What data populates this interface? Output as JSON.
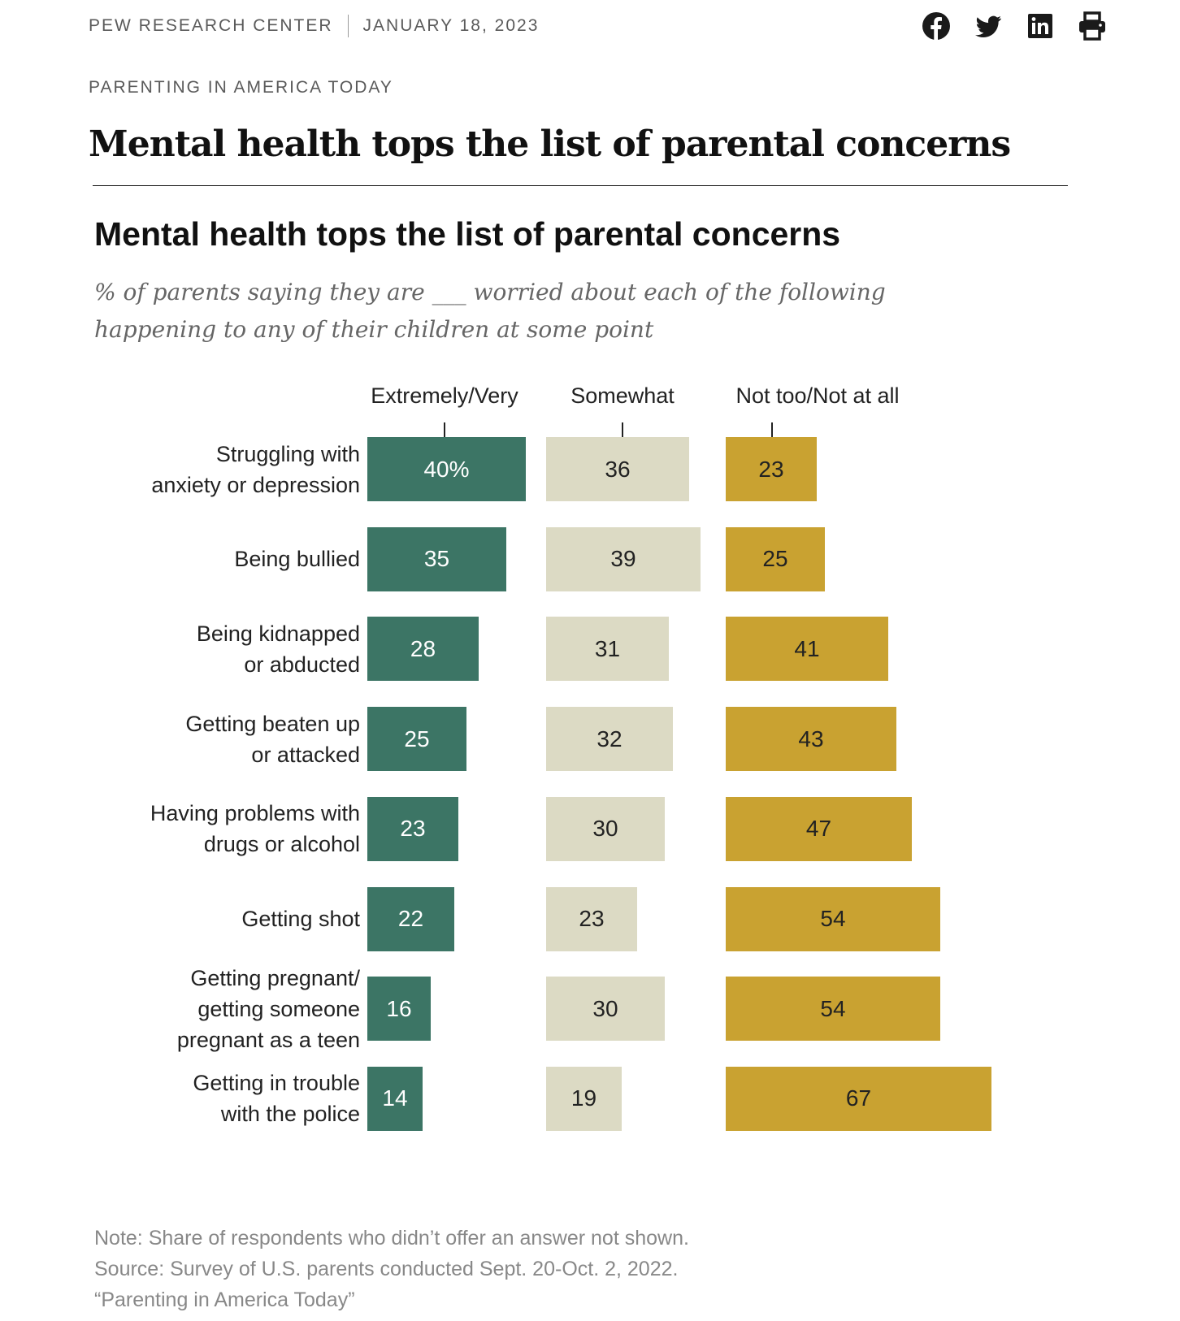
{
  "header": {
    "publisher": "PEW RESEARCH CENTER",
    "date": "JANUARY 18, 2023",
    "social_icons": [
      "facebook-icon",
      "twitter-icon",
      "linkedin-icon",
      "print-icon"
    ],
    "kicker": "PARENTING IN AMERICA TODAY",
    "headline": "Mental health tops the list of parental concerns"
  },
  "chart_data": {
    "type": "bar",
    "title": "Mental health tops the list of parental concerns",
    "subtitle": "% of parents saying they are ___ worried about each of the following happening to any of their children at some point",
    "categories": [
      "Struggling with anxiety or depression",
      "Being bullied",
      "Being kidnapped or abducted",
      "Getting beaten up or attacked",
      "Having problems with drugs or alcohol",
      "Getting shot",
      "Getting pregnant/ getting someone pregnant as a teen",
      "Getting in trouble with the police"
    ],
    "category_lines": [
      [
        "Struggling with",
        "anxiety or depression"
      ],
      [
        "Being bullied"
      ],
      [
        "Being kidnapped",
        "or abducted"
      ],
      [
        "Getting beaten up",
        "or attacked"
      ],
      [
        "Having problems with",
        "drugs or alcohol"
      ],
      [
        "Getting shot"
      ],
      [
        "Getting pregnant/",
        "getting someone",
        "pregnant as a teen"
      ],
      [
        "Getting in trouble",
        "with the police"
      ]
    ],
    "series": [
      {
        "name": "Extremely/Very",
        "color": "#3c7565",
        "values": [
          40,
          35,
          28,
          25,
          23,
          22,
          16,
          14
        ]
      },
      {
        "name": "Somewhat",
        "color": "#dcdac4",
        "values": [
          36,
          39,
          31,
          32,
          30,
          23,
          30,
          19
        ]
      },
      {
        "name": "Not too/Not at all",
        "color": "#c9a231",
        "values": [
          23,
          25,
          41,
          43,
          47,
          54,
          54,
          67
        ]
      }
    ],
    "first_value_suffix": "%",
    "xlabel": "",
    "ylabel": "",
    "grid": false,
    "legend": "top"
  },
  "notes": {
    "note": "Note: Share of respondents who didn’t offer an answer not shown.",
    "source": "Source: Survey of U.S. parents conducted Sept. 20-Oct. 2, 2022.",
    "report": "“Parenting in America Today”"
  }
}
